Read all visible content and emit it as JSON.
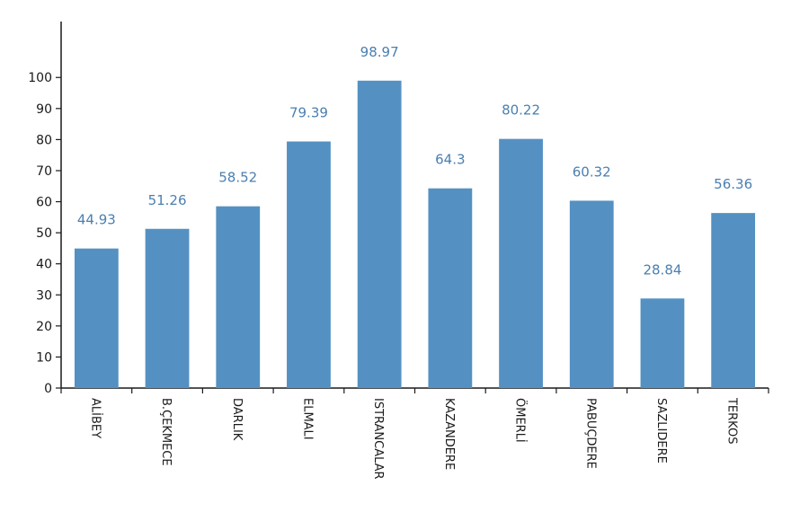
{
  "chart_data": {
    "type": "bar",
    "categories": [
      "ALİBEY",
      "B.ÇEKMECE",
      "DARLIK",
      "ELMALI",
      "ISTRANCALAR",
      "KAZANDERE",
      "ÖMERLİ",
      "PABUÇDERE",
      "SAZLIDERE",
      "TERKOS"
    ],
    "values": [
      44.93,
      51.26,
      58.52,
      79.39,
      98.97,
      64.3,
      80.22,
      60.32,
      28.84,
      56.36
    ],
    "data_labels": [
      "44.93",
      "51.26",
      "58.52",
      "79.39",
      "98.97",
      "64.3",
      "80.22",
      "60.32",
      "28.84",
      "56.36"
    ],
    "yticks": [
      0,
      10,
      20,
      30,
      40,
      50,
      60,
      70,
      80,
      90,
      100
    ],
    "ylim": [
      0,
      118
    ],
    "title": "",
    "xlabel": "",
    "ylabel": "",
    "grid": false,
    "legend": "none",
    "bar_color": "#5491c2",
    "label_color": "#4a7fb0",
    "axis_color": "#1a1a1a"
  }
}
